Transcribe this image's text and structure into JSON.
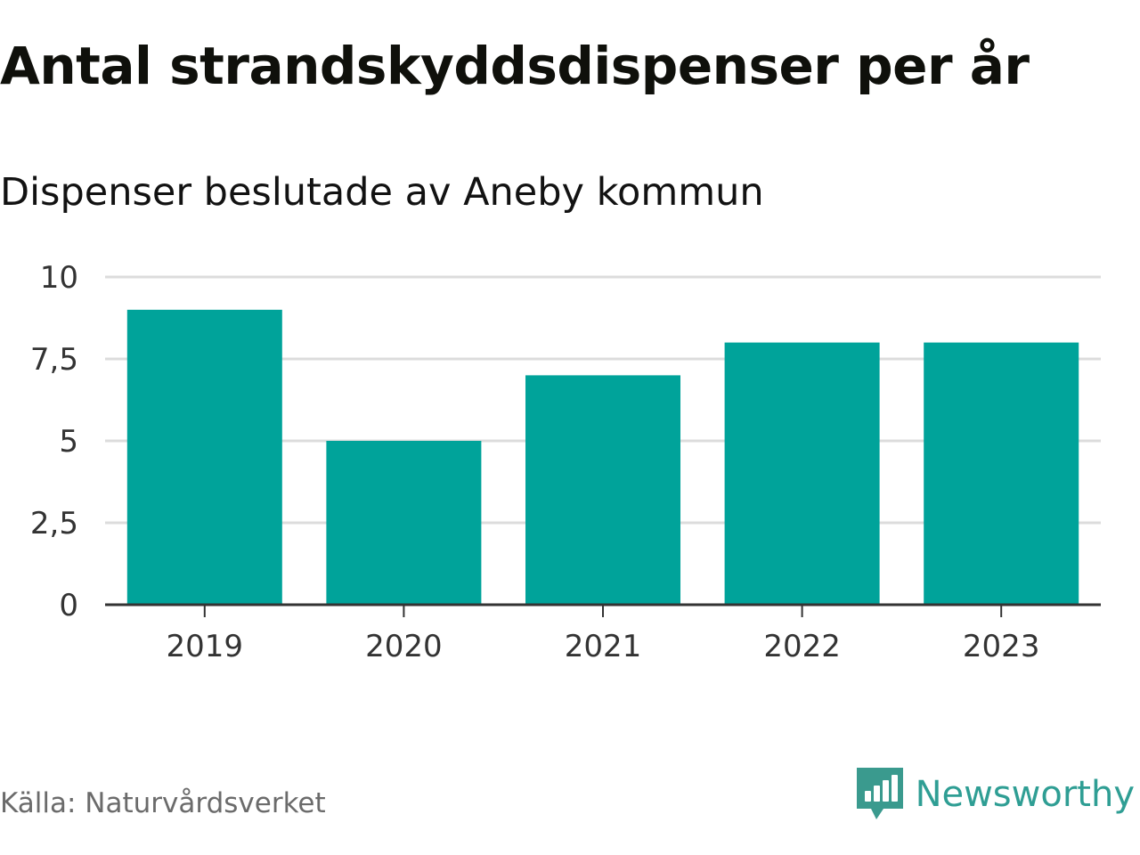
{
  "header": {
    "title": "Antal strandskyddsdispenser per år",
    "subtitle": "Dispenser beslutade av Aneby kommun"
  },
  "footer": {
    "source": "Källa: Naturvårdsverket",
    "brand": "Newsworthy",
    "brand_logo_icon": "newsworthy-logo-icon"
  },
  "colors": {
    "bar": "#00a39a",
    "grid": "#dcdcdc",
    "axis": "#333333",
    "brand": "#2f9e94"
  },
  "chart_data": {
    "type": "bar",
    "title": "Antal strandskyddsdispenser per år",
    "subtitle": "Dispenser beslutade av Aneby kommun",
    "xlabel": "",
    "ylabel": "",
    "categories": [
      "2019",
      "2020",
      "2021",
      "2022",
      "2023"
    ],
    "values": [
      9,
      5,
      7,
      8,
      8
    ],
    "ylim": [
      0,
      10
    ],
    "yticks": [
      0,
      2.5,
      5,
      7.5,
      10
    ],
    "ytick_labels": [
      "0",
      "2,5",
      "5",
      "7,5",
      "10"
    ],
    "grid": true,
    "legend": "none"
  }
}
